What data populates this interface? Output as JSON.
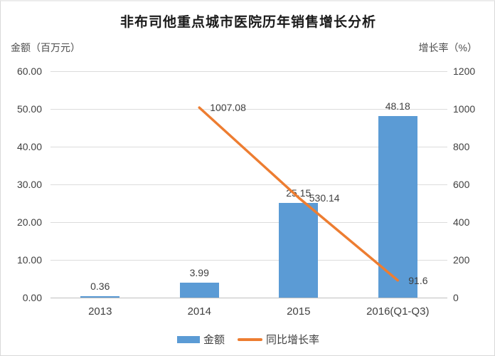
{
  "chart_data": {
    "type": "bar",
    "title": "非布司他重点城市医院历年销售增长分析",
    "categories": [
      "2013",
      "2014",
      "2015",
      "2016(Q1-Q3)"
    ],
    "series": [
      {
        "name": "金额",
        "type": "bar",
        "axis": "left",
        "color": "#5B9BD5",
        "values": [
          0.36,
          3.99,
          25.15,
          48.18
        ],
        "labels": [
          "0.36",
          "3.99",
          "25.15",
          "48.18"
        ]
      },
      {
        "name": "同比增长率",
        "type": "line",
        "axis": "right",
        "color": "#ED7D31",
        "values": [
          null,
          1007.08,
          530.14,
          91.6
        ],
        "labels": [
          null,
          "1007.08",
          "530.14",
          "91.6"
        ]
      }
    ],
    "left_axis": {
      "title": "金额（百万元）",
      "min": 0,
      "max": 60,
      "step": 10,
      "tick_labels": [
        "0.00",
        "10.00",
        "20.00",
        "30.00",
        "40.00",
        "50.00",
        "60.00"
      ]
    },
    "right_axis": {
      "title": "增长率（%）",
      "min": 0,
      "max": 1200,
      "step": 200,
      "tick_labels": [
        "0",
        "200",
        "400",
        "600",
        "800",
        "1000",
        "1200"
      ]
    },
    "grid": "horizontal",
    "legend_position": "bottom",
    "legend": [
      {
        "label": "金额",
        "swatch": "bar",
        "color": "#5B9BD5"
      },
      {
        "label": "同比增长率",
        "swatch": "line",
        "color": "#ED7D31"
      }
    ],
    "colors": {
      "bar": "#5B9BD5",
      "line": "#ED7D31",
      "gridline": "#dcdcdc",
      "axis_line": "#bfbfbf",
      "text": "#404040"
    }
  }
}
